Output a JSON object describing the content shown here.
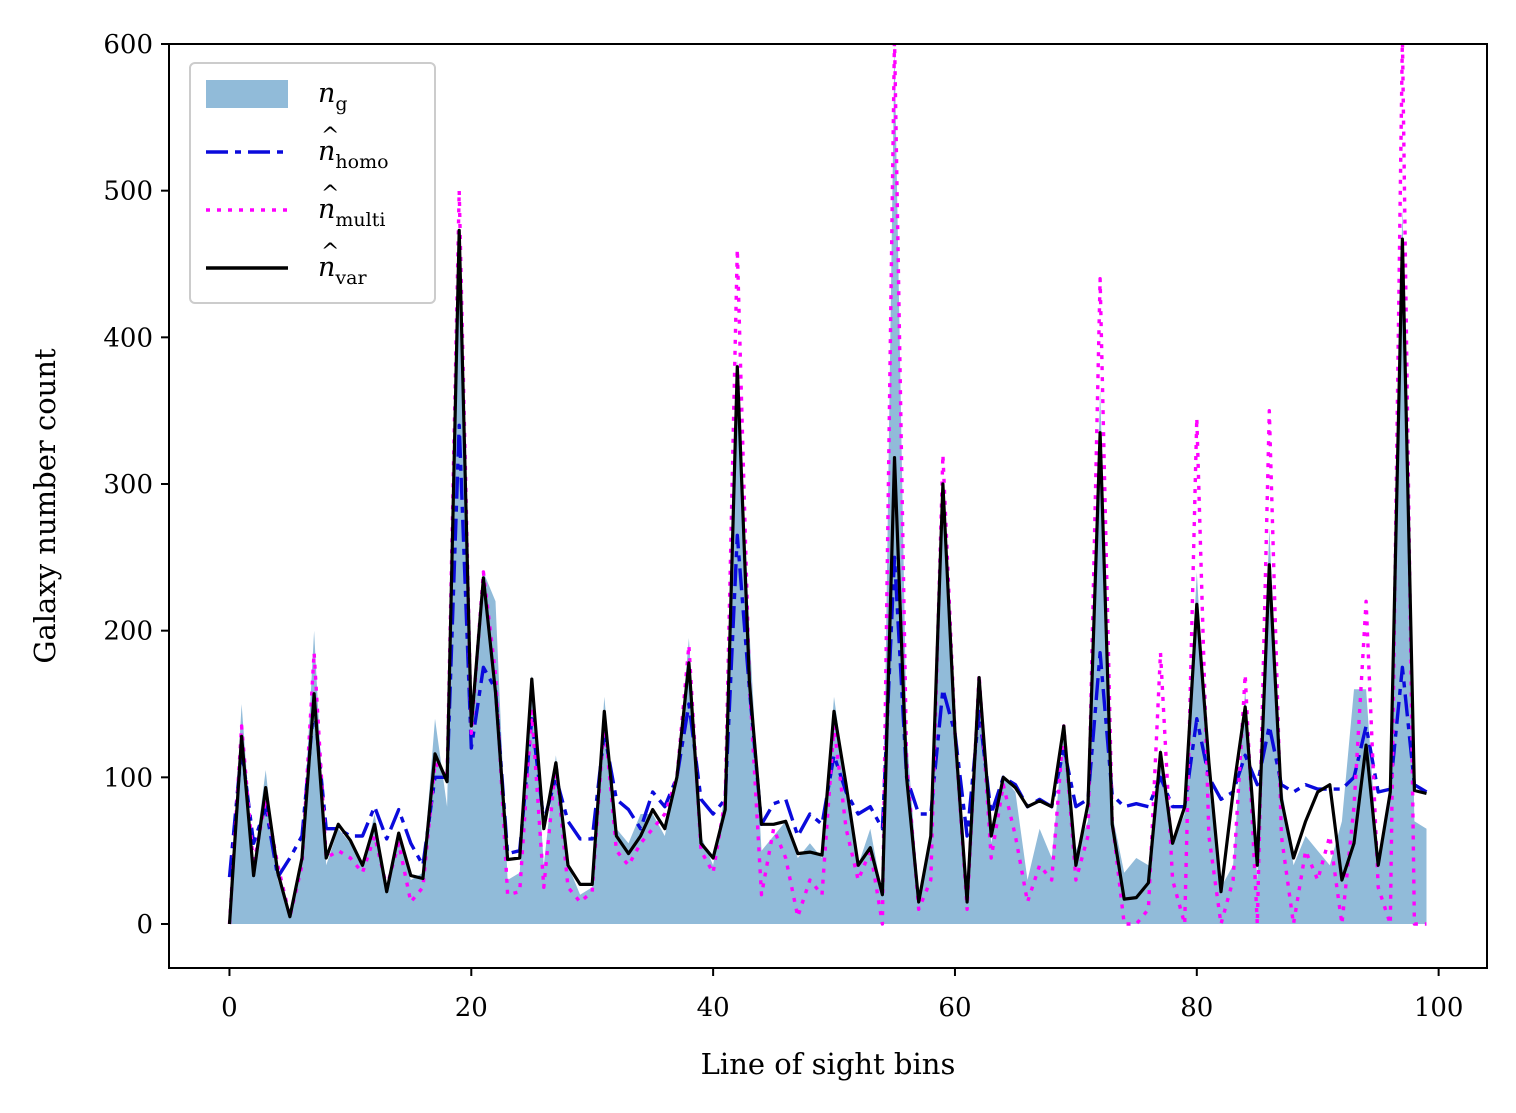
{
  "chart_data": {
    "type": "line",
    "title": "",
    "xlabel": "Line of sight bins",
    "ylabel": "Galaxy number count",
    "xlim": [
      -5,
      104
    ],
    "ylim": [
      -30,
      600
    ],
    "xticks": [
      0,
      20,
      40,
      60,
      80,
      100
    ],
    "yticks": [
      0,
      100,
      200,
      300,
      400,
      500,
      600
    ],
    "legend_position": "top-left",
    "x": [
      0,
      1,
      2,
      3,
      4,
      5,
      6,
      7,
      8,
      9,
      10,
      11,
      12,
      13,
      14,
      15,
      16,
      17,
      18,
      19,
      20,
      21,
      22,
      23,
      24,
      25,
      26,
      27,
      28,
      29,
      30,
      31,
      32,
      33,
      34,
      35,
      36,
      37,
      38,
      39,
      40,
      41,
      42,
      43,
      44,
      45,
      46,
      47,
      48,
      49,
      50,
      51,
      52,
      53,
      54,
      55,
      56,
      57,
      58,
      59,
      60,
      61,
      62,
      63,
      64,
      65,
      66,
      67,
      68,
      69,
      70,
      71,
      72,
      73,
      74,
      75,
      76,
      77,
      78,
      79,
      80,
      81,
      82,
      83,
      84,
      85,
      86,
      87,
      88,
      89,
      90,
      91,
      92,
      93,
      94,
      95,
      96,
      97,
      98,
      99
    ],
    "series": [
      {
        "name": "n_g",
        "label_main": "n",
        "label_sub": "g",
        "label_hat": false,
        "style": "area",
        "color": "#91bbd9",
        "values": [
          0,
          150,
          40,
          105,
          30,
          5,
          45,
          200,
          40,
          65,
          55,
          40,
          75,
          25,
          60,
          30,
          35,
          140,
          80,
          465,
          130,
          240,
          220,
          30,
          35,
          170,
          40,
          115,
          40,
          20,
          25,
          155,
          65,
          55,
          75,
          75,
          60,
          100,
          195,
          60,
          40,
          90,
          385,
          200,
          50,
          60,
          70,
          45,
          55,
          45,
          155,
          95,
          40,
          65,
          20,
          600,
          130,
          20,
          55,
          295,
          120,
          15,
          170,
          55,
          100,
          90,
          30,
          65,
          45,
          130,
          50,
          70,
          365,
          75,
          35,
          45,
          40,
          120,
          55,
          75,
          240,
          95,
          25,
          40,
          160,
          30,
          270,
          95,
          40,
          60,
          50,
          40,
          70,
          160,
          160,
          40,
          90,
          490,
          70,
          65
        ]
      },
      {
        "name": "n_homo",
        "label_main": "n",
        "label_sub": "homo",
        "label_hat": true,
        "style": "dashed",
        "color": "#0a0adc",
        "values": [
          32,
          120,
          55,
          80,
          32,
          45,
          60,
          150,
          65,
          65,
          60,
          60,
          80,
          58,
          78,
          55,
          40,
          100,
          100,
          340,
          120,
          175,
          160,
          48,
          50,
          140,
          70,
          100,
          70,
          58,
          58,
          130,
          85,
          78,
          65,
          90,
          80,
          100,
          150,
          85,
          75,
          85,
          265,
          160,
          68,
          82,
          85,
          60,
          75,
          68,
          115,
          90,
          75,
          80,
          65,
          250,
          100,
          75,
          75,
          160,
          130,
          60,
          145,
          75,
          100,
          95,
          80,
          85,
          80,
          120,
          80,
          85,
          185,
          88,
          80,
          82,
          80,
          100,
          80,
          80,
          140,
          100,
          85,
          90,
          115,
          95,
          135,
          95,
          90,
          95,
          92,
          92,
          92,
          100,
          135,
          90,
          92,
          175,
          95,
          90
        ]
      },
      {
        "name": "n_multi",
        "label_main": "n",
        "label_sub": "multi",
        "label_hat": true,
        "style": "dotted",
        "color": "#ff00ff",
        "values": [
          0,
          135,
          40,
          85,
          40,
          5,
          40,
          185,
          45,
          50,
          45,
          35,
          60,
          25,
          55,
          15,
          25,
          110,
          100,
          500,
          130,
          240,
          170,
          20,
          22,
          145,
          25,
          110,
          25,
          15,
          22,
          140,
          50,
          40,
          55,
          65,
          75,
          100,
          190,
          50,
          35,
          85,
          460,
          165,
          20,
          65,
          45,
          5,
          30,
          20,
          135,
          65,
          30,
          50,
          0,
          605,
          110,
          10,
          30,
          320,
          130,
          10,
          170,
          45,
          95,
          60,
          15,
          40,
          30,
          135,
          30,
          60,
          440,
          70,
          0,
          0,
          10,
          185,
          30,
          0,
          345,
          60,
          0,
          30,
          170,
          0,
          350,
          60,
          0,
          50,
          30,
          60,
          0,
          80,
          220,
          25,
          0,
          605,
          0,
          0
        ]
      },
      {
        "name": "n_var",
        "label_main": "n",
        "label_sub": "var",
        "label_hat": true,
        "style": "solid",
        "color": "#000000",
        "values": [
          0,
          128,
          33,
          93,
          35,
          5,
          45,
          157,
          45,
          68,
          57,
          40,
          68,
          22,
          62,
          33,
          31,
          116,
          97,
          473,
          135,
          236,
          158,
          44,
          45,
          167,
          65,
          110,
          40,
          27,
          27,
          145,
          60,
          48,
          60,
          78,
          65,
          100,
          178,
          55,
          45,
          78,
          380,
          165,
          68,
          68,
          70,
          48,
          49,
          47,
          145,
          95,
          40,
          52,
          20,
          318,
          100,
          15,
          60,
          300,
          130,
          15,
          168,
          60,
          100,
          93,
          80,
          84,
          80,
          135,
          40,
          82,
          335,
          68,
          17,
          18,
          28,
          117,
          55,
          80,
          218,
          110,
          22,
          90,
          148,
          40,
          245,
          85,
          45,
          70,
          90,
          95,
          30,
          55,
          122,
          40,
          90,
          467,
          91,
          89
        ]
      }
    ]
  }
}
